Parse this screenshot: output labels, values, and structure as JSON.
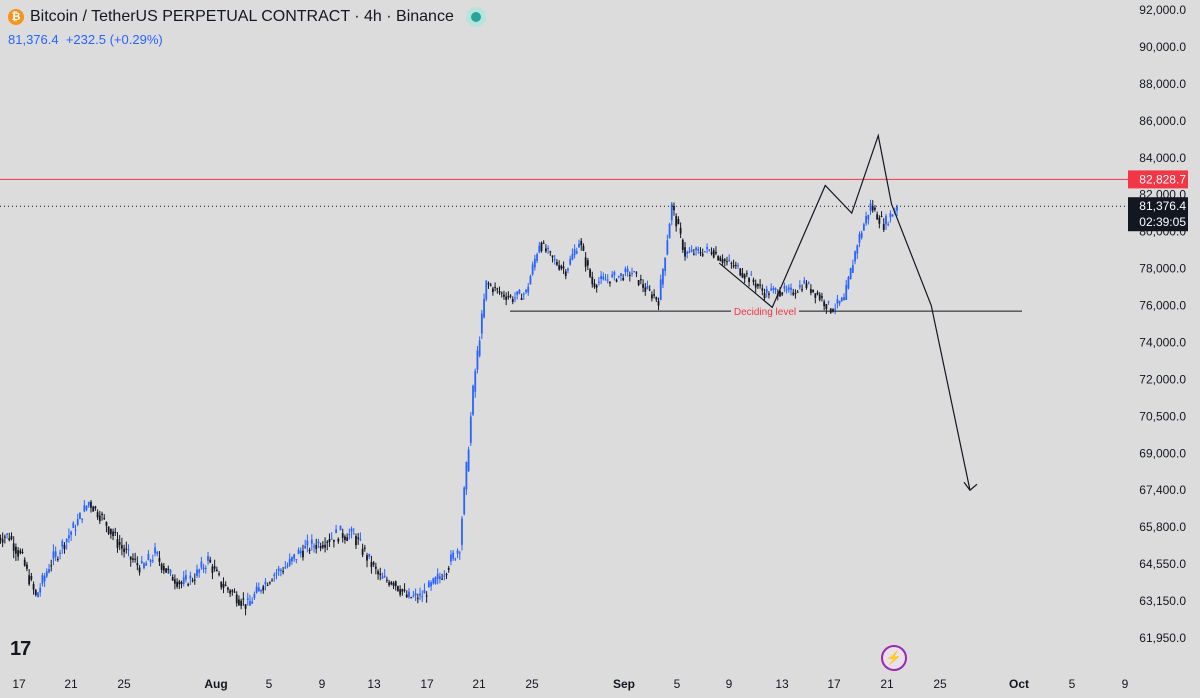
{
  "header": {
    "title": "Bitcoin / TetherUS PERPETUAL CONTRACT · 4h · Binance",
    "symbol_badge": "₿",
    "price": "81,376.4",
    "change": "+232.5",
    "change_pct": "(+0.29%)"
  },
  "logo_text": "17",
  "colors": {
    "up": "#2962ff",
    "down": "#131722",
    "resistance": "#f23645",
    "background": "#dcdcdc"
  },
  "chart_data": {
    "type": "line",
    "timeframe": "4h",
    "y_axis": {
      "ticks": [
        "92,000.0",
        "90,000.0",
        "88,000.0",
        "86,000.0",
        "84,000.0",
        "82,000.0",
        "80,000.0",
        "78,000.0",
        "76,000.0",
        "74,000.0",
        "72,000.0",
        "70,500.0",
        "69,000.0",
        "67,400.0",
        "65,800.0",
        "64,550.0",
        "63,150.0",
        "61,950.0"
      ],
      "scale": "log"
    },
    "x_axis": {
      "ticks": [
        "17",
        "21",
        "25",
        "Aug",
        "5",
        "9",
        "13",
        "17",
        "21",
        "25",
        "Sep",
        "5",
        "9",
        "13",
        "17",
        "21",
        "25",
        "Oct",
        "5",
        "9"
      ],
      "bold_ticks": [
        "Aug",
        "Sep",
        "Oct"
      ]
    },
    "price_series": {
      "x": [
        "Jul 16",
        "Jul 17",
        "Jul 18",
        "Jul 19",
        "Jul 20",
        "Jul 21",
        "Jul 22",
        "Jul 23",
        "Jul 24",
        "Jul 25",
        "Jul 26",
        "Jul 27",
        "Jul 28",
        "Jul 29",
        "Jul 30",
        "Jul 31",
        "Aug 1",
        "Aug 2",
        "Aug 3",
        "Aug 4",
        "Aug 5",
        "Aug 6",
        "Aug 7",
        "Aug 8",
        "Aug 9",
        "Aug 10",
        "Aug 11",
        "Aug 12",
        "Aug 13",
        "Aug 14",
        "Aug 15",
        "Aug 16",
        "Aug 17",
        "Aug 18",
        "Aug 19",
        "Aug 20",
        "Aug 21",
        "Aug 22",
        "Aug 23",
        "Aug 24",
        "Aug 25",
        "Aug 26",
        "Aug 27",
        "Aug 28",
        "Aug 29",
        "Aug 30",
        "Aug 31",
        "Sep 1",
        "Sep 2",
        "Sep 3",
        "Sep 4",
        "Sep 5",
        "Sep 6",
        "Sep 7",
        "Sep 8",
        "Sep 9",
        "Sep 10",
        "Sep 11",
        "Sep 12",
        "Sep 13",
        "Sep 14",
        "Sep 15",
        "Sep 16",
        "Sep 17",
        "Sep 18",
        "Sep 19",
        "Sep 20",
        "Sep 21"
      ],
      "close": [
        65500,
        64700,
        63300,
        64500,
        65200,
        65900,
        66900,
        66200,
        65400,
        64800,
        64400,
        64900,
        64200,
        63800,
        64100,
        64700,
        63800,
        63400,
        63000,
        63700,
        64200,
        64500,
        65000,
        65200,
        65400,
        65600,
        65500,
        64800,
        64000,
        63900,
        63300,
        63300,
        63800,
        64400,
        65200,
        71500,
        77200,
        76700,
        76400,
        76700,
        79400,
        78500,
        77900,
        79500,
        77200,
        77400,
        77600,
        77800,
        76900,
        76300,
        81400,
        78800,
        78900,
        79000,
        78400,
        78000,
        77400,
        76700,
        76800,
        76700,
        77200,
        76600,
        75800,
        76300,
        79400,
        81400,
        80400,
        81376.4
      ]
    },
    "current_price": 81376.4,
    "current_price_label": "81,376.4",
    "countdown_label": "02:39:05",
    "resistance_level": 82828.7,
    "resistance_label": "82,828.7",
    "support_level": 75700,
    "support_label": "Deciding level",
    "projection": {
      "x": [
        "Sep 8",
        "Sep 12",
        "Sep 16",
        "Sep 18",
        "Sep 20",
        "Sep 21",
        "Sep 24",
        "Sep 28"
      ],
      "y": [
        78300,
        75900,
        82500,
        81000,
        85200,
        81500,
        76000,
        67400
      ]
    }
  }
}
